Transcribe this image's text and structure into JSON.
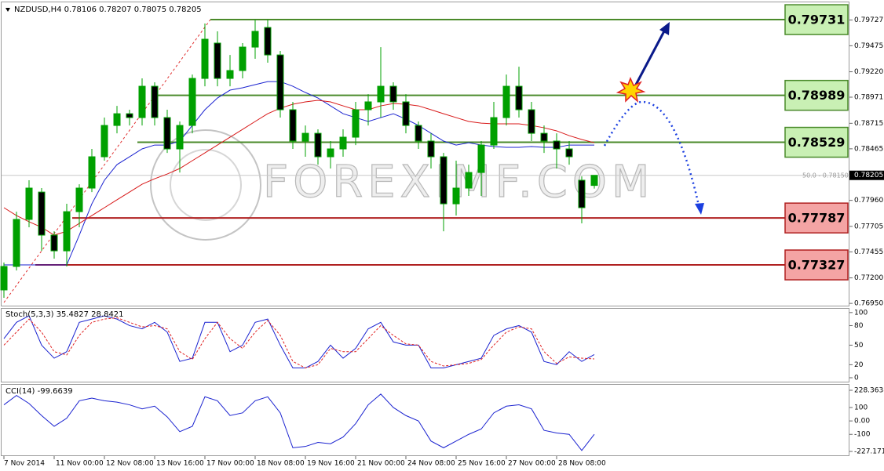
{
  "chart_data": [
    {
      "type": "candlestick",
      "title": "NZDUSD,H4 0.78106 0.78207 0.78075 0.78205",
      "annotation": "50.0 - 0.78150",
      "watermark": "FOREXIMF.COM",
      "categories": [
        "7 Nov 2014",
        null,
        null,
        null,
        "11 Nov 00:00",
        null,
        null,
        null,
        "12 Nov 08:00",
        null,
        null,
        null,
        "13 Nov 16:00",
        null,
        null,
        null,
        "17 Nov 00:00",
        null,
        null,
        null,
        "18 Nov 08:00",
        null,
        null,
        null,
        "19 Nov 16:00",
        null,
        null,
        null,
        "21 Nov 00:00",
        null,
        null,
        null,
        "24 Nov 08:00",
        null,
        null,
        null,
        "25 Nov 16:00",
        null,
        null,
        null,
        "27 Nov 00:00",
        null,
        null,
        null,
        "28 Nov 08:00",
        null,
        null,
        null
      ],
      "open": [
        0.77082,
        0.77312,
        0.77773,
        0.78041,
        0.77619,
        0.77465,
        0.77849,
        0.7808,
        0.78387,
        0.78694,
        0.78809,
        0.78771,
        0.79078,
        0.78771,
        0.78464,
        0.78694,
        0.79155,
        0.79501,
        0.79155,
        0.79232,
        0.79462,
        0.79654,
        0.79385,
        0.78848,
        0.78541,
        0.78617,
        0.78387,
        0.78464,
        0.78579,
        0.78848,
        0.78925,
        0.79078,
        0.78925,
        0.78694,
        0.78541,
        0.78387,
        0.77926,
        0.7808,
        0.78233,
        0.78502,
        0.78771,
        0.79078,
        0.78848,
        0.78617,
        0.78541,
        0.78464,
        0.78157,
        0.78106
      ],
      "high": [
        0.7735,
        0.77849,
        0.78157,
        0.7808,
        0.77657,
        0.77926,
        0.78118,
        0.78464,
        0.78771,
        0.78886,
        0.78848,
        0.79155,
        0.79117,
        0.78848,
        0.78733,
        0.79193,
        0.79693,
        0.79616,
        0.79385,
        0.79501,
        0.79731,
        0.79731,
        0.79424,
        0.78925,
        0.78694,
        0.78656,
        0.78541,
        0.78656,
        0.78925,
        0.79001,
        0.79462,
        0.79117,
        0.79001,
        0.78733,
        0.78617,
        0.78425,
        0.78349,
        0.7831,
        0.78541,
        0.78925,
        0.79193,
        0.7927,
        0.78925,
        0.78694,
        0.78617,
        0.78541,
        0.78195,
        0.78207
      ],
      "low": [
        0.77005,
        0.77273,
        0.77696,
        0.77465,
        0.77389,
        0.77312,
        0.77696,
        0.78041,
        0.78349,
        0.78617,
        0.78694,
        0.78694,
        0.78694,
        0.78425,
        0.78233,
        0.78617,
        0.79078,
        0.79078,
        0.79078,
        0.79155,
        0.79347,
        0.79309,
        0.78771,
        0.78464,
        0.78387,
        0.7831,
        0.78272,
        0.78387,
        0.78502,
        0.78694,
        0.78771,
        0.78848,
        0.78617,
        0.78464,
        0.78272,
        0.77657,
        0.77811,
        0.78003,
        0.78003,
        0.78464,
        0.78694,
        0.78771,
        0.78541,
        0.78425,
        0.78272,
        0.7831,
        0.77734,
        0.78075
      ],
      "close": [
        0.77312,
        0.77773,
        0.7808,
        0.77619,
        0.77465,
        0.77849,
        0.7808,
        0.78387,
        0.78694,
        0.78809,
        0.78771,
        0.79078,
        0.78771,
        0.78464,
        0.78694,
        0.79155,
        0.79539,
        0.79155,
        0.79232,
        0.79462,
        0.79616,
        0.79385,
        0.78848,
        0.78541,
        0.78617,
        0.78387,
        0.78464,
        0.78579,
        0.78848,
        0.78925,
        0.79078,
        0.78925,
        0.78694,
        0.78541,
        0.78387,
        0.77926,
        0.7808,
        0.78233,
        0.78502,
        0.78771,
        0.79078,
        0.78848,
        0.78617,
        0.78541,
        0.78464,
        0.78387,
        0.77888,
        0.78205
      ],
      "up_color": "#00a000",
      "down_color": "#000000",
      "lines": [
        {
          "color": "#1a22d0",
          "values": [
            0.77327,
            0.77327,
            0.77327,
            0.77327,
            0.77327,
            0.77327,
            0.77619,
            0.77926,
            0.78157,
            0.7831,
            0.78387,
            0.78464,
            0.78502,
            0.78502,
            0.78541,
            0.78694,
            0.78848,
            0.78963,
            0.7904,
            0.79063,
            0.79094,
            0.79124,
            0.79124,
            0.79078,
            0.79017,
            0.78963,
            0.78886,
            0.78809,
            0.78771,
            0.78733,
            0.78771,
            0.78809,
            0.78756,
            0.78694,
            0.78617,
            0.78541,
            0.78502,
            0.78525,
            0.78502,
            0.78487,
            0.78479,
            0.78479,
            0.78487,
            0.78479,
            0.78479,
            0.78502,
            0.78502,
            0.78502
          ]
        },
        {
          "color": "#d81818",
          "values": [
            0.77888,
            0.77811,
            0.7775,
            0.77696,
            0.77619,
            0.77657,
            0.77734,
            0.77811,
            0.77888,
            0.77965,
            0.78041,
            0.78118,
            0.78172,
            0.78218,
            0.78272,
            0.78349,
            0.78425,
            0.78502,
            0.78579,
            0.78656,
            0.78733,
            0.78809,
            0.78863,
            0.78902,
            0.78925,
            0.7894,
            0.78925,
            0.78886,
            0.78848,
            0.78848,
            0.78886,
            0.78909,
            0.78902,
            0.78886,
            0.78848,
            0.78809,
            0.78771,
            0.78733,
            0.78717,
            0.7871,
            0.7871,
            0.7871,
            0.78694,
            0.78671,
            0.78641,
            0.78594,
            0.78556,
            0.78525
          ]
        }
      ],
      "levels": [
        {
          "value": 0.79731,
          "color": "#4a8a2a",
          "fill": "#c9f0b4"
        },
        {
          "value": 0.78989,
          "color": "#4a8a2a",
          "fill": "#c9f0b4"
        },
        {
          "value": 0.78529,
          "color": "#4a8a2a",
          "fill": "#c9f0b4"
        },
        {
          "value": 0.77787,
          "color": "#b02020",
          "fill": "#f4a4a4"
        },
        {
          "value": 0.77327,
          "color": "#b02020",
          "fill": "#f4a4a4"
        }
      ],
      "last_price": 0.78205,
      "ylim": [
        0.76928,
        0.79885
      ],
      "yticks": [
        0.79727,
        0.79475,
        {
          "value": 0.7922,
          "label": "0.79220"
        },
        0.78971,
        0.78715,
        0.78465,
        {
          "value": 0.7796,
          "label": "0.77960"
        },
        0.77705,
        0.77455,
        {
          "value": 0.772,
          "label": "0.77200"
        },
        {
          "value": 0.7695,
          "label": "0.76950"
        }
      ]
    },
    {
      "type": "line",
      "title": "Stoch(5,3,3) 35.4827 28.8421",
      "series": [
        {
          "color": "#1a22d0",
          "style": "solid",
          "values": [
            60,
            85,
            95,
            50,
            30,
            40,
            85,
            90,
            95,
            90,
            80,
            75,
            85,
            70,
            25,
            30,
            85,
            85,
            40,
            50,
            85,
            90,
            50,
            15,
            15,
            25,
            50,
            30,
            45,
            75,
            85,
            55,
            50,
            50,
            15,
            15,
            20,
            25,
            30,
            65,
            75,
            80,
            70,
            25,
            20,
            40,
            25,
            35.4827
          ]
        },
        {
          "color": "#e02020",
          "style": "dashed",
          "values": [
            50,
            70,
            90,
            70,
            40,
            35,
            65,
            85,
            90,
            92,
            85,
            78,
            80,
            75,
            40,
            28,
            60,
            85,
            60,
            45,
            70,
            88,
            65,
            25,
            15,
            20,
            45,
            40,
            40,
            60,
            80,
            65,
            52,
            50,
            25,
            18,
            20,
            22,
            28,
            50,
            70,
            78,
            75,
            40,
            22,
            32,
            30,
            28.8421
          ]
        }
      ],
      "ylim": [
        -6,
        107
      ],
      "yticks": [
        100,
        80,
        50,
        20,
        0
      ]
    },
    {
      "type": "line",
      "title": "CCI(14) -99.6639",
      "series": [
        {
          "color": "#1a22d0",
          "style": "solid",
          "values": [
            120,
            190,
            130,
            40,
            -40,
            20,
            150,
            170,
            150,
            140,
            120,
            90,
            110,
            30,
            -80,
            -40,
            180,
            150,
            40,
            60,
            150,
            180,
            60,
            -200,
            -190,
            -160,
            -170,
            -120,
            -20,
            120,
            200,
            100,
            40,
            0,
            -150,
            -200,
            -150,
            -100,
            -60,
            60,
            110,
            120,
            90,
            -70,
            -90,
            -100,
            -220,
            -99.6639
          ]
        }
      ],
      "ylim": [
        -262,
        275
      ],
      "yticks": [
        228.3638,
        100,
        {
          "value": 0,
          "label": "0.00"
        },
        -100,
        -227.1717
      ]
    }
  ]
}
